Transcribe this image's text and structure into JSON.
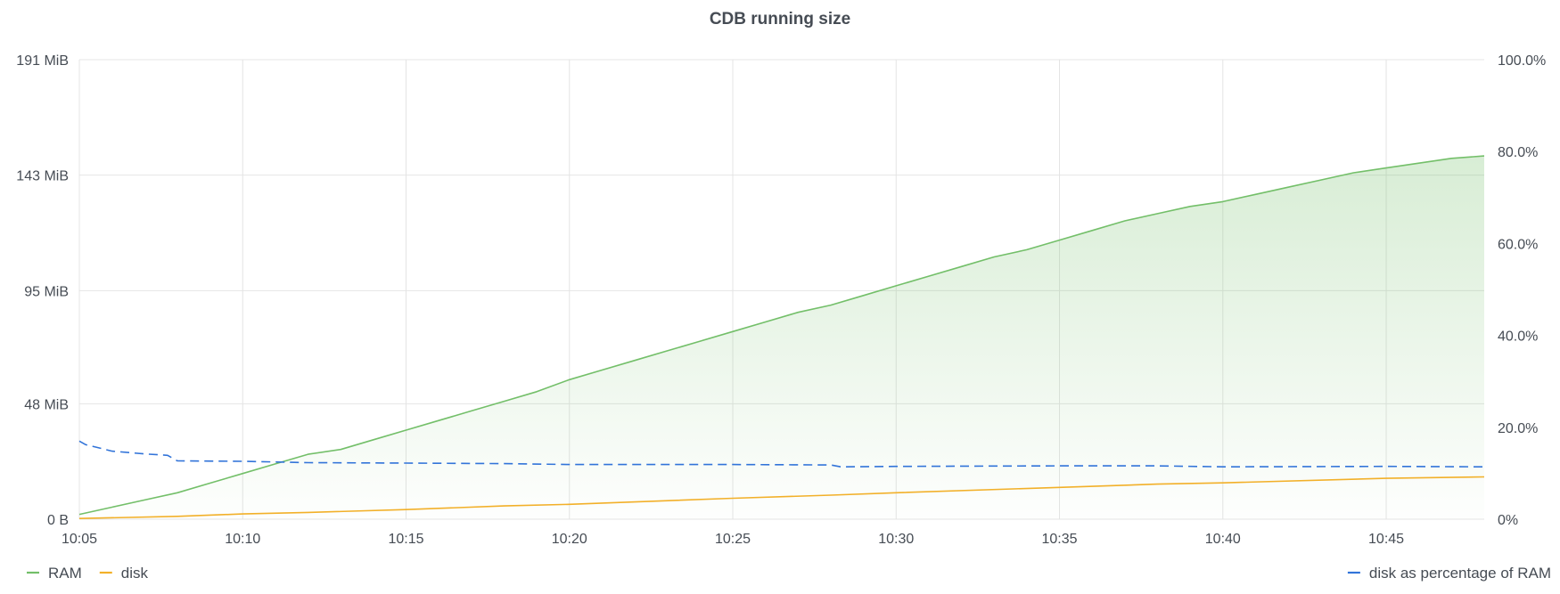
{
  "chart_data": {
    "type": "line",
    "title": "CDB running size",
    "x": {
      "start": "10:05",
      "end": "10:48",
      "tick_labels": [
        "10:05",
        "10:10",
        "10:15",
        "10:20",
        "10:25",
        "10:30",
        "10:35",
        "10:40",
        "10:45"
      ]
    },
    "y_left": {
      "ylim": [
        0,
        191
      ],
      "unit": "MiB",
      "tick_values": [
        0,
        48,
        95,
        143,
        191
      ],
      "tick_labels": [
        "0 B",
        "48 MiB",
        "95 MiB",
        "143 MiB",
        "191 MiB"
      ]
    },
    "y_right": {
      "ylim": [
        0,
        100
      ],
      "unit": "%",
      "tick_values": [
        0,
        20,
        40,
        60,
        80,
        100
      ],
      "tick_labels": [
        "0%",
        "20.0%",
        "40.0%",
        "60.0%",
        "80.0%",
        "100.0%"
      ]
    },
    "grid": true,
    "legend_left_position": "bottom-left",
    "legend_right_position": "bottom-right",
    "series": [
      {
        "name": "RAM",
        "axis": "left",
        "color": "#73bf69",
        "fill": true,
        "style": "solid",
        "points": [
          [
            "10:05",
            2
          ],
          [
            "10:06",
            5
          ],
          [
            "10:07",
            8
          ],
          [
            "10:08",
            11
          ],
          [
            "10:09",
            15
          ],
          [
            "10:10",
            19
          ],
          [
            "10:11",
            23
          ],
          [
            "10:12",
            27
          ],
          [
            "10:13",
            29
          ],
          [
            "10:14",
            33
          ],
          [
            "10:15",
            37
          ],
          [
            "10:16",
            41
          ],
          [
            "10:17",
            45
          ],
          [
            "10:18",
            49
          ],
          [
            "10:19",
            53
          ],
          [
            "10:20",
            58
          ],
          [
            "10:21",
            62
          ],
          [
            "10:22",
            66
          ],
          [
            "10:23",
            70
          ],
          [
            "10:24",
            74
          ],
          [
            "10:25",
            78
          ],
          [
            "10:26",
            82
          ],
          [
            "10:27",
            86
          ],
          [
            "10:28",
            89
          ],
          [
            "10:29",
            93
          ],
          [
            "10:30",
            97
          ],
          [
            "10:31",
            101
          ],
          [
            "10:32",
            105
          ],
          [
            "10:33",
            109
          ],
          [
            "10:34",
            112
          ],
          [
            "10:35",
            116
          ],
          [
            "10:36",
            120
          ],
          [
            "10:37",
            124
          ],
          [
            "10:38",
            127
          ],
          [
            "10:39",
            130
          ],
          [
            "10:40",
            132
          ],
          [
            "10:41",
            135
          ],
          [
            "10:42",
            138
          ],
          [
            "10:43",
            141
          ],
          [
            "10:44",
            144
          ],
          [
            "10:45",
            146
          ],
          [
            "10:46",
            148
          ],
          [
            "10:47",
            150
          ],
          [
            "10:48",
            151
          ]
        ]
      },
      {
        "name": "disk",
        "axis": "left",
        "color": "#f2b029",
        "fill": false,
        "style": "solid",
        "points": [
          [
            "10:05",
            0.3
          ],
          [
            "10:08",
            1.2
          ],
          [
            "10:10",
            2.2
          ],
          [
            "10:12",
            2.8
          ],
          [
            "10:15",
            4.0
          ],
          [
            "10:18",
            5.5
          ],
          [
            "10:20",
            6.2
          ],
          [
            "10:25",
            8.7
          ],
          [
            "10:28",
            10.0
          ],
          [
            "10:30",
            11.0
          ],
          [
            "10:35",
            13.2
          ],
          [
            "10:38",
            14.6
          ],
          [
            "10:40",
            15.1
          ],
          [
            "10:45",
            17.0
          ],
          [
            "10:48",
            17.6
          ]
        ]
      },
      {
        "name": "disk as percentage of RAM",
        "axis": "right",
        "color": "#3274d9",
        "fill": false,
        "style": "dashed",
        "points": [
          [
            "10:05",
            17
          ],
          [
            "10:05.2",
            16.2
          ],
          [
            "10:05.5",
            15.7
          ],
          [
            "10:06",
            14.8
          ],
          [
            "10:07",
            14.2
          ],
          [
            "10:07.7",
            13.9
          ],
          [
            "10:08",
            12.7
          ],
          [
            "10:10",
            12.6
          ],
          [
            "10:12",
            12.3
          ],
          [
            "10:15",
            12.2
          ],
          [
            "10:18",
            12.1
          ],
          [
            "10:20",
            11.9
          ],
          [
            "10:25",
            11.9
          ],
          [
            "10:28",
            11.8
          ],
          [
            "10:28.3",
            11.4
          ],
          [
            "10:30",
            11.5
          ],
          [
            "10:35",
            11.6
          ],
          [
            "10:38",
            11.6
          ],
          [
            "10:40",
            11.4
          ],
          [
            "10:45",
            11.5
          ],
          [
            "10:48",
            11.4
          ]
        ]
      }
    ]
  }
}
